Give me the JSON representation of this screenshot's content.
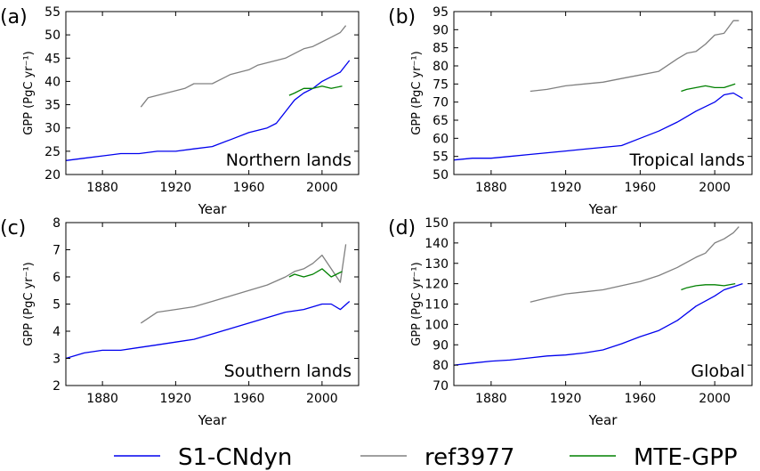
{
  "colors": {
    "S1-CNdyn": "#0000ee",
    "ref3977": "#808080",
    "MTE-GPP": "#008000"
  },
  "legend": {
    "placement": "bottom",
    "entries": [
      {
        "label": "S1-CNdyn",
        "color": "#0000ee"
      },
      {
        "label": "ref3977",
        "color": "#808080"
      },
      {
        "label": "MTE-GPP",
        "color": "#008000"
      }
    ]
  },
  "chart_data": [
    {
      "type": "line",
      "panel_label": "(a)",
      "annotation": "Northern lands",
      "xlabel": "Year",
      "ylabel": "GPP (PgC yr⁻¹)",
      "xlim": [
        1860,
        2020
      ],
      "ylim": [
        20,
        55
      ],
      "xticks": [
        1880,
        1920,
        1960,
        2000
      ],
      "yticks": [
        20,
        25,
        30,
        35,
        40,
        45,
        50,
        55
      ],
      "grid": false,
      "series": [
        {
          "name": "S1-CNdyn",
          "x": [
            1860,
            1870,
            1880,
            1890,
            1900,
            1910,
            1920,
            1930,
            1940,
            1950,
            1960,
            1970,
            1975,
            1980,
            1985,
            1990,
            1995,
            2000,
            2005,
            2010,
            2015
          ],
          "y": [
            23.0,
            23.5,
            24.0,
            24.5,
            24.5,
            25.0,
            25.0,
            25.5,
            26.0,
            27.5,
            29.0,
            30.0,
            31.0,
            33.5,
            36.0,
            37.5,
            38.5,
            40.0,
            41.0,
            42.0,
            44.5
          ]
        },
        {
          "name": "ref3977",
          "x": [
            1901,
            1905,
            1910,
            1915,
            1920,
            1925,
            1930,
            1935,
            1940,
            1945,
            1950,
            1955,
            1960,
            1965,
            1970,
            1975,
            1980,
            1985,
            1990,
            1995,
            2000,
            2005,
            2010,
            2013
          ],
          "y": [
            34.5,
            36.5,
            37.0,
            37.5,
            38.0,
            38.5,
            39.5,
            39.5,
            39.5,
            40.5,
            41.5,
            42.0,
            42.5,
            43.5,
            44.0,
            44.5,
            45.0,
            46.0,
            47.0,
            47.5,
            48.5,
            49.5,
            50.5,
            52.0
          ]
        },
        {
          "name": "MTE-GPP",
          "x": [
            1982,
            1985,
            1990,
            1995,
            2000,
            2005,
            2011
          ],
          "y": [
            37.0,
            37.5,
            38.5,
            38.5,
            39.0,
            38.5,
            39.0
          ]
        }
      ]
    },
    {
      "type": "line",
      "panel_label": "(b)",
      "annotation": "Tropical lands",
      "xlabel": "Year",
      "ylabel": "GPP (PgC yr⁻¹)",
      "xlim": [
        1860,
        2020
      ],
      "ylim": [
        50,
        95
      ],
      "xticks": [
        1880,
        1920,
        1960,
        2000
      ],
      "yticks": [
        50,
        55,
        60,
        65,
        70,
        75,
        80,
        85,
        90,
        95
      ],
      "grid": false,
      "series": [
        {
          "name": "S1-CNdyn",
          "x": [
            1860,
            1870,
            1880,
            1890,
            1900,
            1910,
            1920,
            1930,
            1940,
            1950,
            1960,
            1970,
            1980,
            1990,
            2000,
            2005,
            2010,
            2015
          ],
          "y": [
            54.0,
            54.5,
            54.5,
            55.0,
            55.5,
            56.0,
            56.5,
            57.0,
            57.5,
            58.0,
            60.0,
            62.0,
            64.5,
            67.5,
            70.0,
            72.0,
            72.5,
            71.0
          ]
        },
        {
          "name": "ref3977",
          "x": [
            1901,
            1910,
            1920,
            1930,
            1940,
            1950,
            1960,
            1970,
            1980,
            1985,
            1990,
            1995,
            2000,
            2005,
            2010,
            2013
          ],
          "y": [
            73.0,
            73.5,
            74.5,
            75.0,
            75.5,
            76.5,
            77.5,
            78.5,
            82.0,
            83.5,
            84.0,
            86.0,
            88.5,
            89.0,
            92.5,
            92.5
          ]
        },
        {
          "name": "MTE-GPP",
          "x": [
            1982,
            1985,
            1990,
            1995,
            2000,
            2005,
            2011
          ],
          "y": [
            73.0,
            73.5,
            74.0,
            74.5,
            74.0,
            74.0,
            75.0
          ]
        }
      ]
    },
    {
      "type": "line",
      "panel_label": "(c)",
      "annotation": "Southern lands",
      "xlabel": "Year",
      "ylabel": "GPP (PgC yr⁻¹)",
      "xlim": [
        1860,
        2020
      ],
      "ylim": [
        2,
        8
      ],
      "xticks": [
        1880,
        1920,
        1960,
        2000
      ],
      "yticks": [
        2,
        3,
        4,
        5,
        6,
        7,
        8
      ],
      "grid": false,
      "series": [
        {
          "name": "S1-CNdyn",
          "x": [
            1860,
            1870,
            1880,
            1890,
            1900,
            1910,
            1920,
            1930,
            1940,
            1950,
            1960,
            1970,
            1980,
            1990,
            2000,
            2005,
            2010,
            2015
          ],
          "y": [
            3.0,
            3.2,
            3.3,
            3.3,
            3.4,
            3.5,
            3.6,
            3.7,
            3.9,
            4.1,
            4.3,
            4.5,
            4.7,
            4.8,
            5.0,
            5.0,
            4.8,
            5.1
          ]
        },
        {
          "name": "ref3977",
          "x": [
            1901,
            1910,
            1920,
            1930,
            1940,
            1950,
            1960,
            1970,
            1980,
            1985,
            1990,
            1995,
            2000,
            2005,
            2010,
            2013
          ],
          "y": [
            4.3,
            4.7,
            4.8,
            4.9,
            5.1,
            5.3,
            5.5,
            5.7,
            6.0,
            6.2,
            6.3,
            6.5,
            6.8,
            6.3,
            5.8,
            7.2
          ]
        },
        {
          "name": "MTE-GPP",
          "x": [
            1982,
            1985,
            1990,
            1995,
            2000,
            2005,
            2011
          ],
          "y": [
            6.0,
            6.1,
            6.0,
            6.1,
            6.3,
            6.0,
            6.2
          ]
        }
      ]
    },
    {
      "type": "line",
      "panel_label": "(d)",
      "annotation": "Global",
      "xlabel": "Year",
      "ylabel": "GPP (PgC yr⁻¹)",
      "xlim": [
        1860,
        2020
      ],
      "ylim": [
        70,
        150
      ],
      "xticks": [
        1880,
        1920,
        1960,
        2000
      ],
      "yticks": [
        70,
        80,
        90,
        100,
        110,
        120,
        130,
        140,
        150
      ],
      "grid": false,
      "series": [
        {
          "name": "S1-CNdyn",
          "x": [
            1860,
            1870,
            1880,
            1890,
            1900,
            1910,
            1920,
            1930,
            1940,
            1950,
            1960,
            1970,
            1980,
            1990,
            2000,
            2005,
            2010,
            2015
          ],
          "y": [
            80.0,
            81.0,
            82.0,
            82.5,
            83.5,
            84.5,
            85.0,
            86.0,
            87.5,
            90.5,
            94.0,
            97.0,
            102.0,
            109.0,
            114.0,
            117.0,
            118.5,
            120.0
          ]
        },
        {
          "name": "ref3977",
          "x": [
            1901,
            1910,
            1920,
            1930,
            1940,
            1950,
            1960,
            1970,
            1980,
            1990,
            1995,
            2000,
            2005,
            2010,
            2013
          ],
          "y": [
            111.0,
            113.0,
            115.0,
            116.0,
            117.0,
            119.0,
            121.0,
            124.0,
            128.0,
            133.0,
            135.0,
            140.0,
            142.0,
            145.0,
            148.0
          ]
        },
        {
          "name": "MTE-GPP",
          "x": [
            1982,
            1985,
            1990,
            1995,
            2000,
            2005,
            2011
          ],
          "y": [
            117.0,
            118.0,
            119.0,
            119.5,
            119.5,
            119.0,
            120.0
          ]
        }
      ]
    }
  ]
}
